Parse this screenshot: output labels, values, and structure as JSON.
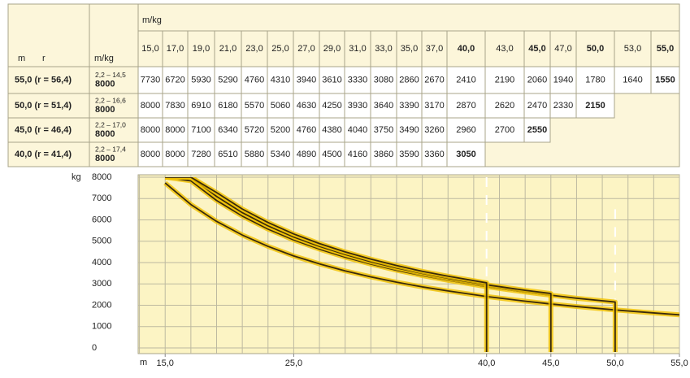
{
  "table": {
    "top_header": "m/kg",
    "corner_boom": "m",
    "corner_radius": "r",
    "corner_unit": "m/kg",
    "columns": [
      {
        "value": 15,
        "label": "15,0"
      },
      {
        "value": 17,
        "label": "17,0"
      },
      {
        "value": 19,
        "label": "19,0"
      },
      {
        "value": 21,
        "label": "21,0"
      },
      {
        "value": 23,
        "label": "23,0"
      },
      {
        "value": 25,
        "label": "25,0"
      },
      {
        "value": 27,
        "label": "27,0"
      },
      {
        "value": 29,
        "label": "29,0"
      },
      {
        "value": 31,
        "label": "31,0"
      },
      {
        "value": 33,
        "label": "33,0"
      },
      {
        "value": 35,
        "label": "35,0"
      },
      {
        "value": 37,
        "label": "37,0"
      },
      {
        "value": 40,
        "label": "40,0"
      },
      {
        "value": 43,
        "label": "43,0"
      },
      {
        "value": 45,
        "label": "45,0"
      },
      {
        "value": 47,
        "label": "47,0"
      },
      {
        "value": 50,
        "label": "50,0"
      },
      {
        "value": 53,
        "label": "53,0"
      },
      {
        "value": 55,
        "label": "55,0"
      }
    ],
    "rows": [
      {
        "label": "55,0 (r = 56,4)",
        "range": "2,2 – 14,5",
        "max": "8000",
        "values": [
          7730,
          6720,
          5930,
          5290,
          4760,
          4310,
          3940,
          3610,
          3330,
          3080,
          2860,
          2670,
          2410,
          2190,
          2060,
          1940,
          1780,
          1640,
          1550
        ]
      },
      {
        "label": "50,0 (r = 51,4)",
        "range": "2,2 – 16,6",
        "max": "8000",
        "values": [
          8000,
          7830,
          6910,
          6180,
          5570,
          5060,
          4630,
          4250,
          3930,
          3640,
          3390,
          3170,
          2870,
          2620,
          2470,
          2330,
          2150
        ]
      },
      {
        "label": "45,0 (r = 46,4)",
        "range": "2,2 – 17,0",
        "max": "8000",
        "values": [
          8000,
          8000,
          7100,
          6340,
          5720,
          5200,
          4760,
          4380,
          4040,
          3750,
          3490,
          3260,
          2960,
          2700,
          2550
        ]
      },
      {
        "label": "40,0 (r = 41,4)",
        "range": "2,2 – 17,4",
        "max": "8000",
        "values": [
          8000,
          8000,
          7280,
          6510,
          5880,
          5340,
          4890,
          4500,
          4160,
          3860,
          3590,
          3360,
          3050
        ]
      }
    ]
  },
  "chart_data": {
    "type": "line",
    "y_label": "kg",
    "x_label": "m",
    "xlim": [
      12.9,
      55
    ],
    "ylim": [
      0,
      8000
    ],
    "xticks": [
      {
        "value": 15,
        "label": "15,0"
      },
      {
        "value": 25,
        "label": "25,0"
      },
      {
        "value": 40,
        "label": "40,0"
      },
      {
        "value": 45,
        "label": "45,0"
      },
      {
        "value": 50,
        "label": "50,0"
      },
      {
        "value": 55,
        "label": "55,0"
      }
    ],
    "yticks": [
      0,
      1000,
      2000,
      3000,
      4000,
      5000,
      6000,
      7000,
      8000
    ],
    "grid": true,
    "color": "#3a2a0c"
  }
}
